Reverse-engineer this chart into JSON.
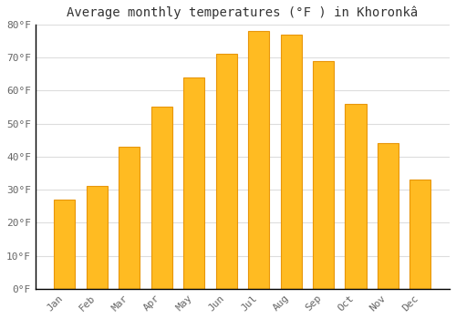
{
  "title": "Average monthly temperatures (°F ) in Khoronkâ",
  "months": [
    "Jan",
    "Feb",
    "Mar",
    "Apr",
    "May",
    "Jun",
    "Jul",
    "Aug",
    "Sep",
    "Oct",
    "Nov",
    "Dec"
  ],
  "values": [
    27,
    31,
    43,
    55,
    64,
    71,
    78,
    77,
    69,
    56,
    44,
    33
  ],
  "bar_color": "#FFBB22",
  "bar_edge_color": "#E8960A",
  "background_color": "#FFFFFF",
  "grid_color": "#DDDDDD",
  "ylim": [
    0,
    80
  ],
  "yticks": [
    0,
    10,
    20,
    30,
    40,
    50,
    60,
    70,
    80
  ],
  "ytick_labels": [
    "0°F",
    "10°F",
    "20°F",
    "30°F",
    "40°F",
    "50°F",
    "60°F",
    "70°F",
    "80°F"
  ],
  "title_fontsize": 10,
  "tick_fontsize": 8,
  "title_color": "#333333",
  "tick_color": "#666666",
  "bar_width": 0.65
}
